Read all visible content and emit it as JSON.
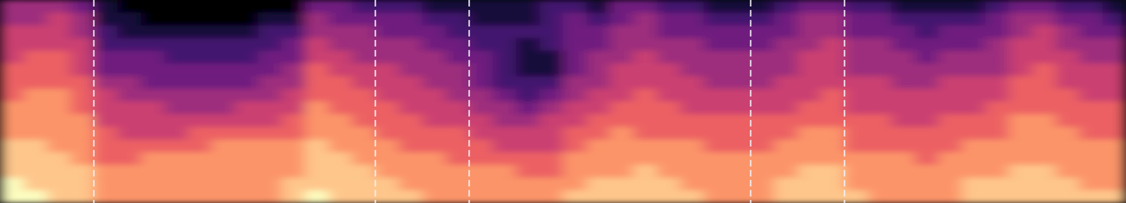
{
  "chart_data": {
    "type": "heatmap",
    "tick_labels": false,
    "grid": false,
    "xlim": [
      0,
      12
    ],
    "zlim": [
      0,
      9
    ],
    "boundaries": [
      1,
      4,
      5,
      8,
      9
    ],
    "cells": [
      [
        4,
        4,
        4,
        3,
        1,
        0,
        0,
        0,
        0,
        0,
        0,
        0,
        0,
        3,
        3,
        2,
        2,
        2,
        1,
        1,
        1,
        1,
        1,
        2,
        2,
        1,
        3,
        3,
        2,
        2,
        1,
        1,
        1,
        2,
        3,
        3,
        2,
        2,
        1,
        1,
        1,
        1,
        2,
        3,
        3,
        2,
        2,
        1
      ],
      [
        4,
        4,
        5,
        4,
        1,
        1,
        0,
        0,
        0,
        0,
        0,
        1,
        1,
        4,
        3,
        3,
        3,
        3,
        2,
        2,
        1,
        1,
        1,
        2,
        3,
        2,
        3,
        4,
        3,
        3,
        2,
        2,
        2,
        3,
        4,
        4,
        3,
        3,
        2,
        2,
        2,
        2,
        3,
        4,
        4,
        3,
        3,
        2
      ],
      [
        5,
        5,
        5,
        4,
        2,
        1,
        1,
        1,
        1,
        1,
        1,
        2,
        2,
        4,
        4,
        4,
        3,
        3,
        3,
        2,
        2,
        2,
        2,
        2,
        3,
        3,
        4,
        4,
        3,
        3,
        3,
        3,
        3,
        3,
        4,
        4,
        3,
        3,
        3,
        2,
        3,
        3,
        3,
        4,
        5,
        4,
        3,
        3
      ],
      [
        5,
        5,
        5,
        5,
        2,
        2,
        2,
        2,
        2,
        2,
        2,
        2,
        3,
        5,
        4,
        4,
        4,
        4,
        3,
        3,
        2,
        2,
        1,
        2,
        3,
        3,
        4,
        4,
        4,
        4,
        3,
        3,
        3,
        4,
        4,
        5,
        4,
        4,
        3,
        3,
        3,
        3,
        4,
        5,
        5,
        4,
        4,
        4
      ],
      [
        5,
        6,
        6,
        5,
        3,
        3,
        3,
        2,
        2,
        2,
        2,
        3,
        3,
        5,
        5,
        4,
        4,
        4,
        4,
        3,
        3,
        2,
        1,
        1,
        3,
        4,
        4,
        5,
        4,
        4,
        4,
        4,
        4,
        4,
        5,
        5,
        4,
        4,
        4,
        3,
        4,
        4,
        4,
        5,
        5,
        5,
        4,
        4
      ],
      [
        6,
        6,
        6,
        5,
        3,
        3,
        3,
        3,
        3,
        3,
        3,
        3,
        4,
        6,
        5,
        5,
        5,
        4,
        4,
        4,
        3,
        2,
        1,
        1,
        3,
        4,
        5,
        5,
        5,
        4,
        4,
        4,
        4,
        4,
        5,
        5,
        4,
        4,
        4,
        4,
        4,
        4,
        4,
        5,
        6,
        5,
        5,
        5
      ],
      [
        6,
        6,
        6,
        6,
        4,
        4,
        3,
        3,
        3,
        3,
        3,
        4,
        4,
        6,
        6,
        5,
        5,
        5,
        4,
        4,
        3,
        2,
        2,
        2,
        4,
        4,
        5,
        5,
        5,
        5,
        4,
        4,
        4,
        5,
        5,
        5,
        5,
        5,
        4,
        4,
        5,
        5,
        5,
        6,
        6,
        5,
        5,
        5
      ],
      [
        6,
        7,
        7,
        6,
        5,
        4,
        4,
        4,
        4,
        4,
        4,
        4,
        5,
        6,
        6,
        6,
        5,
        5,
        5,
        4,
        4,
        3,
        2,
        3,
        4,
        5,
        5,
        6,
        5,
        5,
        5,
        5,
        5,
        5,
        5,
        6,
        5,
        5,
        5,
        5,
        5,
        5,
        5,
        6,
        6,
        6,
        5,
        5
      ],
      [
        7,
        7,
        7,
        6,
        5,
        5,
        5,
        4,
        4,
        4,
        5,
        5,
        5,
        7,
        6,
        6,
        6,
        5,
        5,
        5,
        4,
        4,
        3,
        4,
        5,
        5,
        6,
        6,
        6,
        5,
        5,
        5,
        5,
        5,
        6,
        6,
        5,
        5,
        5,
        5,
        5,
        5,
        6,
        6,
        6,
        6,
        6,
        6
      ],
      [
        7,
        7,
        7,
        7,
        5,
        5,
        5,
        5,
        5,
        5,
        5,
        5,
        6,
        7,
        7,
        6,
        6,
        6,
        5,
        5,
        5,
        4,
        4,
        5,
        5,
        6,
        6,
        6,
        6,
        6,
        6,
        6,
        6,
        6,
        6,
        6,
        6,
        6,
        5,
        5,
        6,
        6,
        6,
        7,
        7,
        6,
        6,
        6
      ],
      [
        7,
        7,
        7,
        7,
        6,
        5,
        5,
        5,
        6,
        6,
        6,
        6,
        6,
        7,
        7,
        7,
        6,
        6,
        6,
        6,
        5,
        5,
        5,
        5,
        6,
        6,
        7,
        6,
        6,
        6,
        6,
        6,
        6,
        6,
        7,
        7,
        6,
        6,
        6,
        6,
        6,
        6,
        6,
        7,
        7,
        7,
        6,
        6
      ],
      [
        8,
        8,
        7,
        7,
        6,
        6,
        6,
        6,
        6,
        7,
        7,
        7,
        7,
        8,
        7,
        7,
        7,
        6,
        6,
        6,
        6,
        5,
        5,
        5,
        6,
        7,
        7,
        7,
        7,
        7,
        6,
        6,
        6,
        7,
        7,
        7,
        6,
        6,
        6,
        6,
        6,
        7,
        7,
        7,
        7,
        7,
        7,
        7
      ],
      [
        8,
        8,
        8,
        7,
        6,
        6,
        7,
        7,
        7,
        7,
        7,
        7,
        7,
        8,
        8,
        7,
        7,
        7,
        7,
        6,
        6,
        6,
        6,
        6,
        7,
        7,
        7,
        7,
        7,
        7,
        7,
        7,
        7,
        7,
        7,
        7,
        7,
        7,
        7,
        6,
        7,
        7,
        7,
        7,
        7,
        7,
        7,
        7
      ],
      [
        8,
        8,
        8,
        8,
        7,
        7,
        7,
        7,
        7,
        7,
        7,
        7,
        7,
        8,
        8,
        8,
        7,
        7,
        7,
        7,
        7,
        7,
        6,
        6,
        7,
        7,
        7,
        8,
        7,
        7,
        7,
        7,
        7,
        7,
        8,
        8,
        7,
        7,
        7,
        7,
        7,
        7,
        7,
        8,
        8,
        7,
        7,
        7
      ],
      [
        9,
        8,
        8,
        8,
        7,
        7,
        7,
        7,
        7,
        7,
        7,
        7,
        8,
        8,
        8,
        8,
        8,
        7,
        7,
        7,
        7,
        7,
        7,
        7,
        7,
        8,
        8,
        8,
        8,
        7,
        7,
        7,
        7,
        8,
        8,
        8,
        7,
        7,
        7,
        7,
        7,
        8,
        8,
        8,
        8,
        8,
        7,
        7
      ],
      [
        9,
        9,
        8,
        8,
        7,
        7,
        7,
        7,
        7,
        7,
        7,
        7,
        8,
        9,
        8,
        8,
        8,
        8,
        7,
        7,
        7,
        7,
        7,
        7,
        8,
        8,
        8,
        8,
        8,
        8,
        7,
        7,
        7,
        8,
        8,
        8,
        8,
        7,
        7,
        7,
        7,
        8,
        8,
        8,
        8,
        8,
        8,
        8
      ]
    ]
  }
}
